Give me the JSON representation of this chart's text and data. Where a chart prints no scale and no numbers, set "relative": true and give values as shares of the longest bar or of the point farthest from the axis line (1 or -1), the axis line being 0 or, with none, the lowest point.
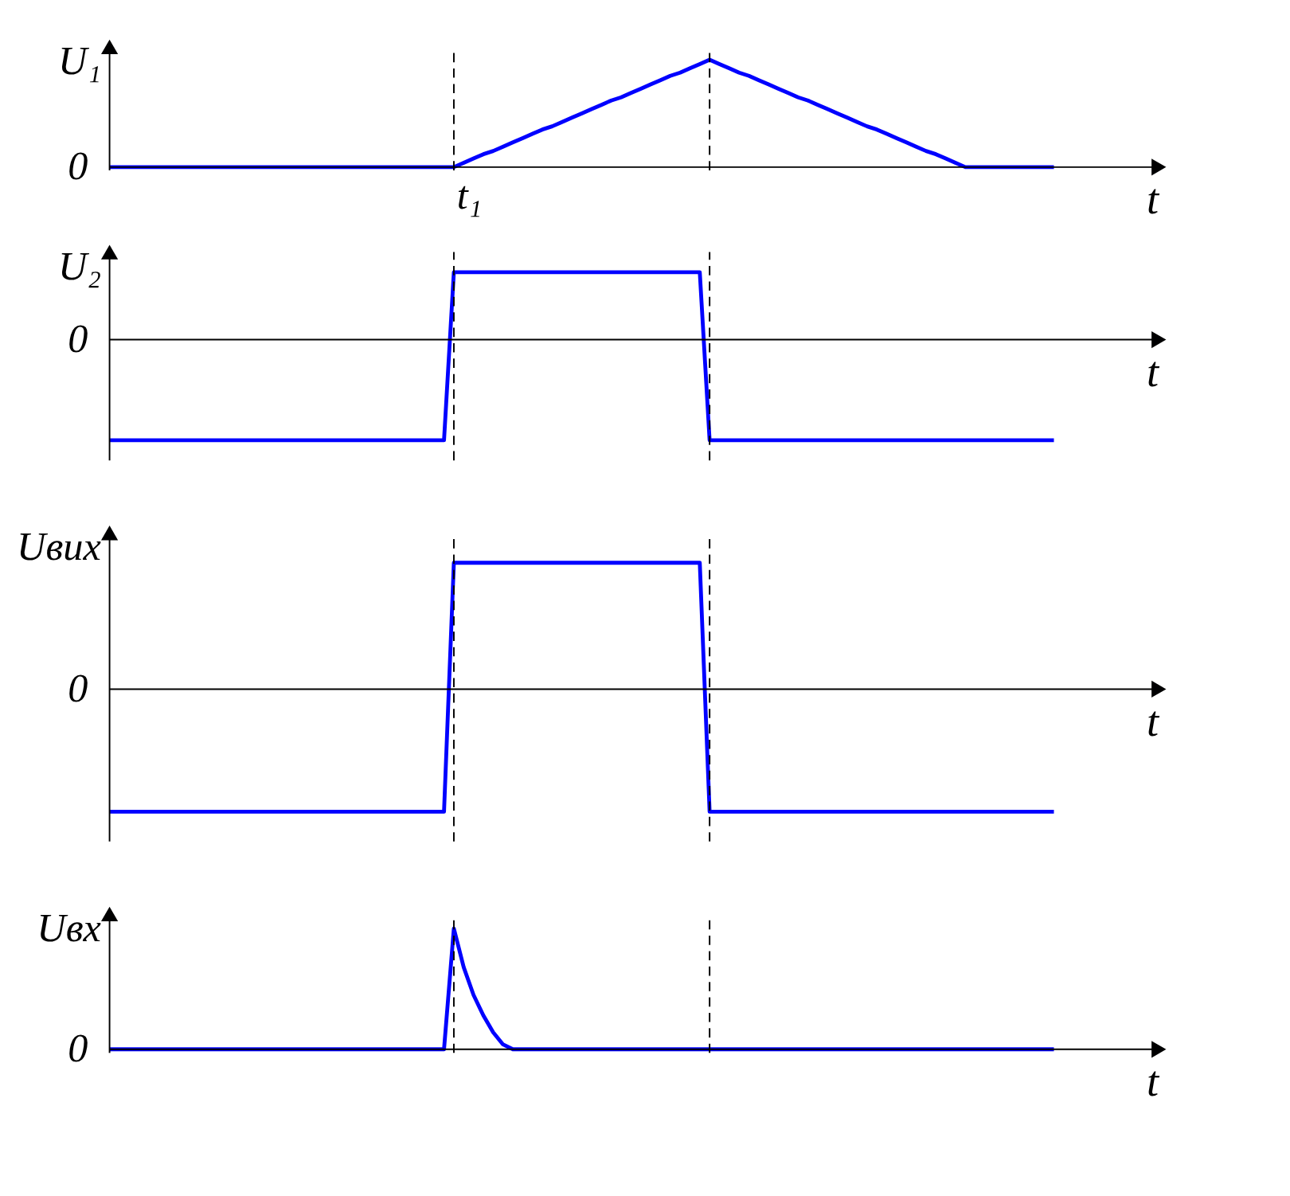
{
  "chart_data": [
    {
      "type": "line",
      "relative": true,
      "ylabel": "U₁",
      "xlabel": "t",
      "grid": false,
      "line_style": "solid",
      "marker": "none",
      "annotations": [
        "0",
        "t₁"
      ],
      "categories": [
        null,
        null,
        null,
        null,
        null,
        null,
        null,
        null,
        null,
        null,
        null,
        null,
        null,
        null,
        null,
        null,
        null,
        null,
        null,
        null,
        null,
        null,
        null,
        null,
        null,
        null,
        null,
        null,
        null,
        null,
        null,
        null,
        null,
        null,
        null,
        null,
        null,
        null,
        null,
        null,
        null,
        null,
        null,
        null,
        null,
        null,
        null,
        null,
        null,
        null,
        null,
        null,
        null,
        null,
        null,
        null,
        null,
        null,
        null,
        null,
        null,
        null,
        null,
        null,
        null,
        null,
        null,
        null,
        null,
        null,
        null,
        null,
        null,
        null,
        null,
        null,
        null,
        null,
        null,
        null,
        null,
        null,
        null,
        null,
        null,
        null,
        null,
        null,
        null,
        null,
        null,
        null,
        null,
        null,
        null,
        null,
        null
      ],
      "series": [
        {
          "color": "#0000ff",
          "values": [
            0,
            0,
            0,
            0,
            0,
            0,
            0,
            0,
            0,
            0,
            0,
            0,
            0,
            0,
            0,
            0,
            0,
            0,
            0,
            0,
            0,
            0,
            0,
            0,
            0,
            0,
            0,
            0,
            0,
            0,
            0,
            0,
            0,
            0,
            0,
            0,
            0.04,
            0.08,
            0.12,
            0.15,
            0.19,
            0.23,
            0.27,
            0.31,
            0.35,
            0.38,
            0.42,
            0.46,
            0.5,
            0.54,
            0.58,
            0.62,
            0.65,
            0.69,
            0.73,
            0.77,
            0.81,
            0.85,
            0.88,
            0.92,
            0.96,
            1,
            0.96,
            0.92,
            0.88,
            0.85,
            0.81,
            0.77,
            0.73,
            0.69,
            0.65,
            0.62,
            0.58,
            0.54,
            0.5,
            0.46,
            0.42,
            0.38,
            0.35,
            0.31,
            0.27,
            0.23,
            0.19,
            0.15,
            0.12,
            0.08,
            0.04,
            0,
            0,
            0,
            0,
            0,
            0,
            0,
            0,
            0,
            0
          ]
        }
      ]
    },
    {
      "type": "line",
      "relative": true,
      "ylabel": "U₂",
      "xlabel": "t",
      "grid": false,
      "line_style": "solid",
      "marker": "none",
      "annotations": [
        "0"
      ],
      "categories": [
        null,
        null,
        null,
        null,
        null,
        null,
        null,
        null,
        null,
        null,
        null,
        null,
        null,
        null,
        null,
        null,
        null,
        null,
        null,
        null,
        null,
        null,
        null,
        null,
        null,
        null,
        null,
        null,
        null,
        null,
        null,
        null,
        null,
        null,
        null,
        null,
        null,
        null,
        null,
        null,
        null,
        null,
        null,
        null,
        null,
        null,
        null,
        null,
        null,
        null,
        null,
        null,
        null,
        null,
        null,
        null,
        null,
        null,
        null,
        null,
        null,
        null,
        null,
        null,
        null,
        null,
        null,
        null,
        null,
        null,
        null,
        null,
        null,
        null,
        null,
        null,
        null,
        null,
        null,
        null,
        null,
        null,
        null,
        null,
        null,
        null,
        null,
        null,
        null,
        null,
        null,
        null,
        null,
        null,
        null,
        null,
        null
      ],
      "series": [
        {
          "color": "#0000ff",
          "values": [
            -1,
            -1,
            -1,
            -1,
            -1,
            -1,
            -1,
            -1,
            -1,
            -1,
            -1,
            -1,
            -1,
            -1,
            -1,
            -1,
            -1,
            -1,
            -1,
            -1,
            -1,
            -1,
            -1,
            -1,
            -1,
            -1,
            -1,
            -1,
            -1,
            -1,
            -1,
            -1,
            -1,
            -1,
            -1,
            0.67,
            0.67,
            0.67,
            0.67,
            0.67,
            0.67,
            0.67,
            0.67,
            0.67,
            0.67,
            0.67,
            0.67,
            0.67,
            0.67,
            0.67,
            0.67,
            0.67,
            0.67,
            0.67,
            0.67,
            0.67,
            0.67,
            0.67,
            0.67,
            0.67,
            0.67,
            -1,
            -1,
            -1,
            -1,
            -1,
            -1,
            -1,
            -1,
            -1,
            -1,
            -1,
            -1,
            -1,
            -1,
            -1,
            -1,
            -1,
            -1,
            -1,
            -1,
            -1,
            -1,
            -1,
            -1,
            -1,
            -1,
            -1,
            -1,
            -1,
            -1,
            -1,
            -1,
            -1,
            -1,
            -1,
            -1
          ]
        }
      ]
    },
    {
      "type": "line",
      "relative": true,
      "ylabel": "Uвих",
      "xlabel": "t",
      "grid": false,
      "line_style": "solid",
      "marker": "none",
      "annotations": [
        "0"
      ],
      "categories": [
        null,
        null,
        null,
        null,
        null,
        null,
        null,
        null,
        null,
        null,
        null,
        null,
        null,
        null,
        null,
        null,
        null,
        null,
        null,
        null,
        null,
        null,
        null,
        null,
        null,
        null,
        null,
        null,
        null,
        null,
        null,
        null,
        null,
        null,
        null,
        null,
        null,
        null,
        null,
        null,
        null,
        null,
        null,
        null,
        null,
        null,
        null,
        null,
        null,
        null,
        null,
        null,
        null,
        null,
        null,
        null,
        null,
        null,
        null,
        null,
        null,
        null,
        null,
        null,
        null,
        null,
        null,
        null,
        null,
        null,
        null,
        null,
        null,
        null,
        null,
        null,
        null,
        null,
        null,
        null,
        null,
        null,
        null,
        null,
        null,
        null,
        null,
        null,
        null,
        null,
        null,
        null,
        null,
        null,
        null,
        null,
        null
      ],
      "series": [
        {
          "color": "#0000ff",
          "values": [
            -0.97,
            -0.97,
            -0.97,
            -0.97,
            -0.97,
            -0.97,
            -0.97,
            -0.97,
            -0.97,
            -0.97,
            -0.97,
            -0.97,
            -0.97,
            -0.97,
            -0.97,
            -0.97,
            -0.97,
            -0.97,
            -0.97,
            -0.97,
            -0.97,
            -0.97,
            -0.97,
            -0.97,
            -0.97,
            -0.97,
            -0.97,
            -0.97,
            -0.97,
            -0.97,
            -0.97,
            -0.97,
            -0.97,
            -0.97,
            -0.97,
            1,
            1,
            1,
            1,
            1,
            1,
            1,
            1,
            1,
            1,
            1,
            1,
            1,
            1,
            1,
            1,
            1,
            1,
            1,
            1,
            1,
            1,
            1,
            1,
            1,
            1,
            -0.97,
            -0.97,
            -0.97,
            -0.97,
            -0.97,
            -0.97,
            -0.97,
            -0.97,
            -0.97,
            -0.97,
            -0.97,
            -0.97,
            -0.97,
            -0.97,
            -0.97,
            -0.97,
            -0.97,
            -0.97,
            -0.97,
            -0.97,
            -0.97,
            -0.97,
            -0.97,
            -0.97,
            -0.97,
            -0.97,
            -0.97,
            -0.97,
            -0.97,
            -0.97,
            -0.97,
            -0.97,
            -0.97,
            -0.97,
            -0.97,
            -0.97
          ]
        }
      ]
    },
    {
      "type": "line",
      "relative": true,
      "ylabel": "Uвх",
      "xlabel": "t",
      "grid": false,
      "line_style": "solid",
      "marker": "none",
      "annotations": [
        "0"
      ],
      "categories": [
        null,
        null,
        null,
        null,
        null,
        null,
        null,
        null,
        null,
        null,
        null,
        null,
        null,
        null,
        null,
        null,
        null,
        null,
        null,
        null,
        null,
        null,
        null,
        null,
        null,
        null,
        null,
        null,
        null,
        null,
        null,
        null,
        null,
        null,
        null,
        null,
        null,
        null,
        null,
        null,
        null,
        null,
        null,
        null,
        null,
        null,
        null,
        null,
        null,
        null,
        null,
        null,
        null,
        null,
        null,
        null,
        null,
        null,
        null,
        null,
        null,
        null,
        null,
        null,
        null,
        null,
        null,
        null,
        null,
        null,
        null,
        null,
        null,
        null,
        null,
        null,
        null,
        null,
        null,
        null,
        null,
        null,
        null,
        null,
        null,
        null,
        null,
        null,
        null,
        null,
        null,
        null,
        null,
        null,
        null,
        null,
        null
      ],
      "series": [
        {
          "color": "#0000ff",
          "values": [
            0,
            0,
            0,
            0,
            0,
            0,
            0,
            0,
            0,
            0,
            0,
            0,
            0,
            0,
            0,
            0,
            0,
            0,
            0,
            0,
            0,
            0,
            0,
            0,
            0,
            0,
            0,
            0,
            0,
            0,
            0,
            0,
            0,
            0,
            0,
            1,
            0.68,
            0.45,
            0.28,
            0.14,
            0.04,
            0,
            0,
            0,
            0,
            0,
            0,
            0,
            0,
            0,
            0,
            0,
            0,
            0,
            0,
            0,
            0,
            0,
            0,
            0,
            0,
            0,
            0,
            0,
            0,
            0,
            0,
            0,
            0,
            0,
            0,
            0,
            0,
            0,
            0,
            0,
            0,
            0,
            0,
            0,
            0,
            0,
            0,
            0,
            0,
            0,
            0,
            0,
            0,
            0,
            0,
            0,
            0,
            0,
            0,
            0,
            0
          ]
        }
      ]
    }
  ]
}
